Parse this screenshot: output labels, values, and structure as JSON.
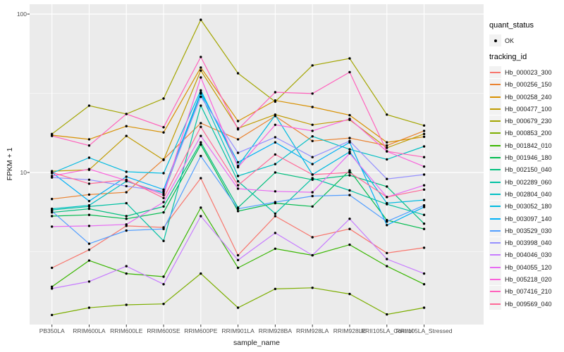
{
  "chart_data": {
    "type": "line",
    "title": "",
    "xlabel": "sample_name",
    "ylabel": "FPKM + 1",
    "y_scale": "log10",
    "y_tick_labels": [
      "100",
      "10"
    ],
    "y_tick_values": [
      100,
      10
    ],
    "y_minor_values": [
      31.62,
      3.162
    ],
    "ylim": [
      1.1,
      115
    ],
    "grid": "on",
    "legend_position": "right",
    "categories": [
      "PB350LA",
      "RRIM600LA",
      "RRIM600LE",
      "RRIM600SE",
      "RRIM600PE",
      "RRIM901LA",
      "RRIM928BA",
      "RRIM928LA",
      "RRIM928LE",
      "RRII105LA_Control",
      "RRII105LA_Stressed"
    ],
    "point_marker": {
      "shape": "circle",
      "color": "#000000"
    },
    "series": [
      {
        "tracking_id": "Hb_000023_300",
        "color": "#F8766D",
        "values": [
          2.5,
          3.25,
          4.6,
          4.5,
          9.2,
          3.0,
          5.3,
          3.9,
          4.4,
          3.1,
          3.35
        ]
      },
      {
        "tracking_id": "Hb_000256_150",
        "color": "#EA8331",
        "values": [
          6.8,
          7.25,
          7.5,
          12.1,
          20.5,
          16.2,
          22.7,
          15.8,
          16.5,
          14.8,
          18.3
        ]
      },
      {
        "tracking_id": "Hb_000258_240",
        "color": "#D89000",
        "values": [
          17.2,
          16.2,
          19.6,
          17.9,
          46.0,
          21.1,
          28.5,
          25.9,
          23.0,
          15.5,
          16.8
        ]
      },
      {
        "tracking_id": "Hb_000477_100",
        "color": "#C09B00",
        "values": [
          10.2,
          10.4,
          17.0,
          12.0,
          44.0,
          19.0,
          23.2,
          20.0,
          21.5,
          14.3,
          17.5
        ]
      },
      {
        "tracking_id": "Hb_000679_230",
        "color": "#A3A500",
        "values": [
          17.5,
          26.4,
          23.4,
          29.3,
          92.0,
          42.3,
          28.0,
          47.4,
          52.5,
          23.2,
          19.8
        ]
      },
      {
        "tracking_id": "Hb_000853_200",
        "color": "#7CAE00",
        "values": [
          1.26,
          1.4,
          1.46,
          1.48,
          2.3,
          1.4,
          1.84,
          1.87,
          1.71,
          1.27,
          1.4
        ]
      },
      {
        "tracking_id": "Hb_001842_010",
        "color": "#39B600",
        "values": [
          1.9,
          2.78,
          2.3,
          2.2,
          6.0,
          2.5,
          3.3,
          3.0,
          3.5,
          2.56,
          1.97
        ]
      },
      {
        "tracking_id": "Hb_001946_180",
        "color": "#00BB4E",
        "values": [
          5.3,
          5.4,
          5.1,
          5.6,
          15.0,
          5.7,
          6.4,
          6.1,
          10.3,
          5.0,
          4.4
        ]
      },
      {
        "tracking_id": "Hb_002150_040",
        "color": "#00BF7D",
        "values": [
          5.6,
          5.9,
          5.3,
          6.1,
          15.5,
          6.0,
          10.0,
          9.0,
          9.6,
          8.15,
          4.75
        ]
      },
      {
        "tracking_id": "Hb_002289_060",
        "color": "#00C1A3",
        "values": [
          5.8,
          6.1,
          6.4,
          3.7,
          26.4,
          8.8,
          5.5,
          9.2,
          7.7,
          6.3,
          5.4
        ]
      },
      {
        "tracking_id": "Hb_002804_040",
        "color": "#00BFC4",
        "values": [
          5.9,
          6.2,
          8.8,
          7.4,
          31.5,
          9.5,
          11.3,
          16.9,
          14.0,
          12.1,
          14.6
        ]
      },
      {
        "tracking_id": "Hb_003052_180",
        "color": "#00BAE0",
        "values": [
          9.9,
          12.4,
          10.1,
          9.9,
          33.0,
          11.0,
          23.0,
          9.7,
          13.5,
          6.4,
          6.7
        ]
      },
      {
        "tracking_id": "Hb_003097_140",
        "color": "#00B0F6",
        "values": [
          10.0,
          6.6,
          9.4,
          7.8,
          32.0,
          11.6,
          15.5,
          11.3,
          15.5,
          4.65,
          6.05
        ]
      },
      {
        "tracking_id": "Hb_003529_030",
        "color": "#529EFF",
        "values": [
          5.7,
          3.55,
          4.3,
          4.4,
          12.7,
          5.9,
          6.5,
          7.1,
          7.2,
          4.9,
          6.2
        ]
      },
      {
        "tracking_id": "Hb_003998_040",
        "color": "#9590FF",
        "values": [
          9.3,
          9.0,
          8.2,
          7.6,
          30.0,
          13.3,
          16.7,
          12.5,
          15.8,
          9.1,
          9.7
        ]
      },
      {
        "tracking_id": "Hb_004046_030",
        "color": "#C77CFF",
        "values": [
          1.85,
          2.05,
          2.56,
          1.97,
          5.3,
          2.8,
          4.15,
          3.0,
          5.1,
          2.84,
          2.3
        ]
      },
      {
        "tracking_id": "Hb_004055_120",
        "color": "#E76BF3",
        "values": [
          4.55,
          4.6,
          4.7,
          6.5,
          17.0,
          7.9,
          7.6,
          7.5,
          13.2,
          7.0,
          8.3
        ]
      },
      {
        "tracking_id": "Hb_005218_020",
        "color": "#FA62DB",
        "values": [
          9.5,
          10.5,
          8.9,
          7.2,
          39.8,
          10.8,
          20.0,
          18.3,
          21.8,
          13.6,
          10.9
        ]
      },
      {
        "tracking_id": "Hb_007416_210",
        "color": "#FF62BC",
        "values": [
          17.0,
          14.8,
          23.4,
          19.3,
          53.6,
          18.7,
          32.1,
          31.5,
          43.0,
          13.6,
          12.5
        ]
      },
      {
        "tracking_id": "Hb_009569_040",
        "color": "#FF6A98",
        "values": [
          10.0,
          8.5,
          9.0,
          6.9,
          19.4,
          8.3,
          13.0,
          9.7,
          10.0,
          7.0,
          7.8
        ]
      }
    ]
  },
  "legend": {
    "quant_status_title": "quant_status",
    "quant_status_items": [
      "OK"
    ],
    "tracking_id_title": "tracking_id"
  },
  "theme": {
    "panel_bg": "#EBEBEB",
    "grid_major": "#FFFFFF",
    "grid_minor": "#F5F5F5",
    "key_bg": "#F2F2F2",
    "tick_color": "#333333",
    "tick_text": "#4D4D4D",
    "point_color": "#000000"
  }
}
